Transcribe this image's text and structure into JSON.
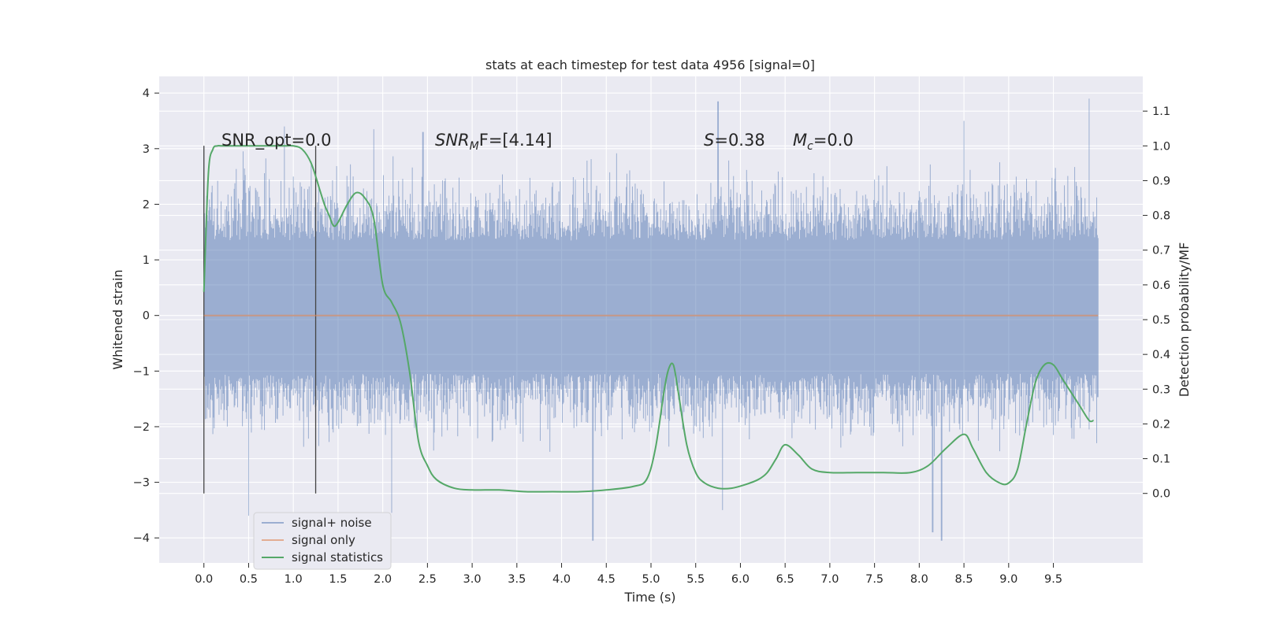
{
  "chart_data": {
    "type": "line",
    "title": "stats at each timestep for test data 4956 [signal=0]",
    "xlabel": "Time (s)",
    "ylabel_left": "Whitened strain",
    "ylabel_right": "Detection probability/MF",
    "xlim": [
      -0.5,
      10.5
    ],
    "ylim_left": [
      -4.45,
      4.3
    ],
    "ylim_right": [
      -0.2,
      1.2
    ],
    "x_ticks": [
      "0.0",
      "0.5",
      "1.0",
      "1.5",
      "2.0",
      "2.5",
      "3.0",
      "3.5",
      "4.0",
      "4.5",
      "5.0",
      "5.5",
      "6.0",
      "6.5",
      "7.0",
      "7.5",
      "8.0",
      "8.5",
      "9.0",
      "9.5"
    ],
    "y_ticks_left": [
      "4",
      "3",
      "2",
      "1",
      "0",
      "−1",
      "−2",
      "−3",
      "−4"
    ],
    "y_ticks_right": [
      "1.1",
      "1.0",
      "0.9",
      "0.8",
      "0.7",
      "0.6",
      "0.5",
      "0.4",
      "0.3",
      "0.2",
      "0.1",
      "0.0"
    ],
    "grid": true,
    "legend_position": "lower-left",
    "annotations": {
      "snr_opt": "SNR_opt=0.0",
      "snr_mf_sym": "SNR",
      "snr_mf_sub": "M",
      "snr_mf_rest": "F=[4.14]",
      "s_sym": "S",
      "s_val": "=0.38",
      "mc_sym": "M",
      "mc_sub": "c",
      "mc_val": "=0.0"
    },
    "vertical_markers": [
      0.0,
      1.25
    ],
    "series": [
      {
        "name": "signal+ noise",
        "color": "#4c72b0",
        "noise_band_approx": [
          -1.9,
          2.5
        ],
        "x_range": [
          0.0,
          10.0
        ],
        "peaks_max": [
          [
            0.0,
            3.05
          ],
          [
            0.9,
            3.4
          ],
          [
            1.9,
            3.35
          ],
          [
            2.45,
            3.3
          ],
          [
            5.75,
            3.85
          ],
          [
            8.5,
            3.5
          ],
          [
            9.9,
            3.9
          ]
        ],
        "peaks_min": [
          [
            0.5,
            -3.6
          ],
          [
            2.1,
            -3.55
          ],
          [
            4.35,
            -4.05
          ],
          [
            5.8,
            -3.5
          ],
          [
            8.15,
            -3.9
          ],
          [
            8.25,
            -4.05
          ]
        ]
      },
      {
        "name": "signal only",
        "color": "#dd8452",
        "x": [
          0.0,
          10.0
        ],
        "y": [
          0.0,
          0.0
        ]
      },
      {
        "name": "signal statistics",
        "color": "#55a868",
        "x": [
          0.0,
          0.05,
          0.1,
          0.15,
          0.2,
          0.3,
          0.5,
          0.7,
          0.9,
          1.0,
          1.1,
          1.2,
          1.3,
          1.35,
          1.4,
          1.45,
          1.5,
          1.6,
          1.7,
          1.8,
          1.9,
          2.0,
          2.1,
          2.2,
          2.3,
          2.4,
          2.5,
          2.6,
          2.8,
          3.0,
          3.3,
          3.6,
          3.9,
          4.2,
          4.5,
          4.8,
          4.95,
          5.05,
          5.15,
          5.2,
          5.25,
          5.3,
          5.4,
          5.5,
          5.6,
          5.75,
          5.9,
          6.05,
          6.2,
          6.3,
          6.4,
          6.5,
          6.65,
          6.8,
          7.0,
          7.3,
          7.6,
          7.9,
          8.1,
          8.3,
          8.5,
          8.6,
          8.75,
          8.9,
          9.0,
          9.1,
          9.2,
          9.3,
          9.4,
          9.5,
          9.6,
          9.7,
          9.8,
          9.9,
          9.95
        ],
        "y": [
          0.58,
          0.92,
          0.99,
          1.0,
          1.0,
          1.0,
          1.0,
          1.0,
          1.0,
          1.0,
          0.99,
          0.95,
          0.87,
          0.83,
          0.8,
          0.77,
          0.78,
          0.83,
          0.865,
          0.85,
          0.79,
          0.6,
          0.55,
          0.49,
          0.35,
          0.15,
          0.08,
          0.04,
          0.015,
          0.01,
          0.01,
          0.005,
          0.005,
          0.005,
          0.01,
          0.02,
          0.04,
          0.13,
          0.3,
          0.36,
          0.37,
          0.3,
          0.14,
          0.06,
          0.03,
          0.015,
          0.015,
          0.025,
          0.04,
          0.06,
          0.1,
          0.14,
          0.11,
          0.07,
          0.06,
          0.06,
          0.06,
          0.06,
          0.08,
          0.13,
          0.17,
          0.13,
          0.06,
          0.03,
          0.03,
          0.07,
          0.2,
          0.32,
          0.37,
          0.37,
          0.33,
          0.29,
          0.25,
          0.21,
          0.21
        ]
      }
    ]
  }
}
